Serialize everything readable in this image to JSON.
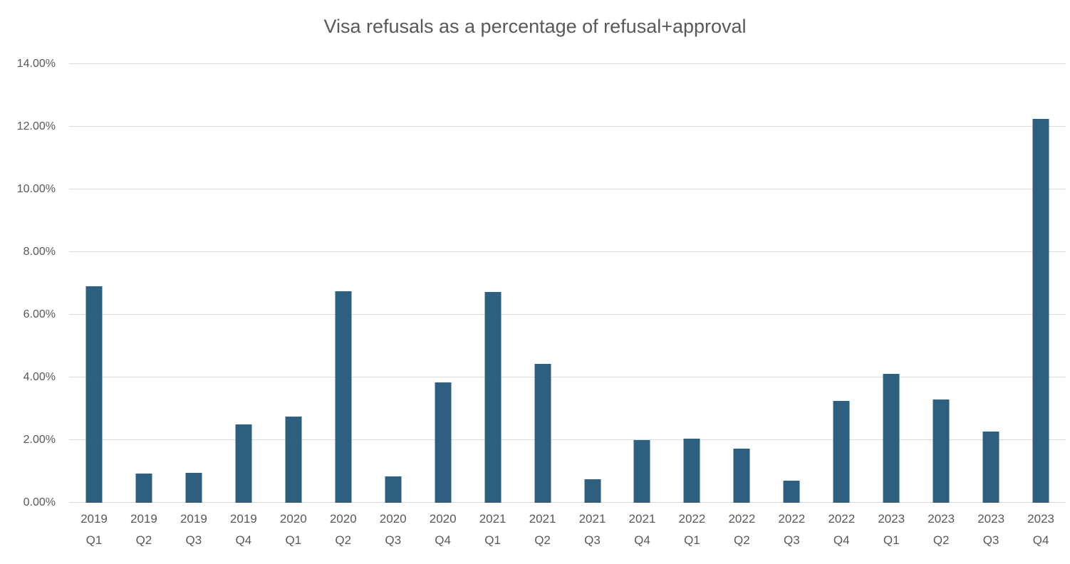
{
  "chart_data": {
    "type": "bar",
    "title": "Visa refusals as a percentage of refusal+approval",
    "categories": [
      "2019 Q1",
      "2019 Q2",
      "2019 Q3",
      "2019 Q4",
      "2020 Q1",
      "2020 Q2",
      "2020 Q3",
      "2020 Q4",
      "2021 Q1",
      "2021 Q2",
      "2021 Q3",
      "2021 Q4",
      "2022 Q1",
      "2022 Q2",
      "2022 Q3",
      "2022 Q4",
      "2023 Q1",
      "2023 Q2",
      "2023 Q3",
      "2023 Q4"
    ],
    "values": [
      6.91,
      0.93,
      0.95,
      2.51,
      2.76,
      6.76,
      0.85,
      3.84,
      6.73,
      4.43,
      0.74,
      2.0,
      2.05,
      1.73,
      0.71,
      3.25,
      4.11,
      3.3,
      2.27,
      12.25
    ],
    "xlabel": "",
    "ylabel": "",
    "ylim": [
      0,
      14
    ],
    "ytick_step": 2,
    "ytick_labels": [
      "0.00%",
      "2.00%",
      "4.00%",
      "6.00%",
      "8.00%",
      "10.00%",
      "12.00%",
      "14.00%"
    ],
    "grid": "horizontal-only",
    "legend": "none",
    "value_unit": "%",
    "colors": {
      "bar": "#2e5f7e",
      "gridline": "#d9d9d9",
      "text": "#595959",
      "background": "#ffffff"
    }
  }
}
